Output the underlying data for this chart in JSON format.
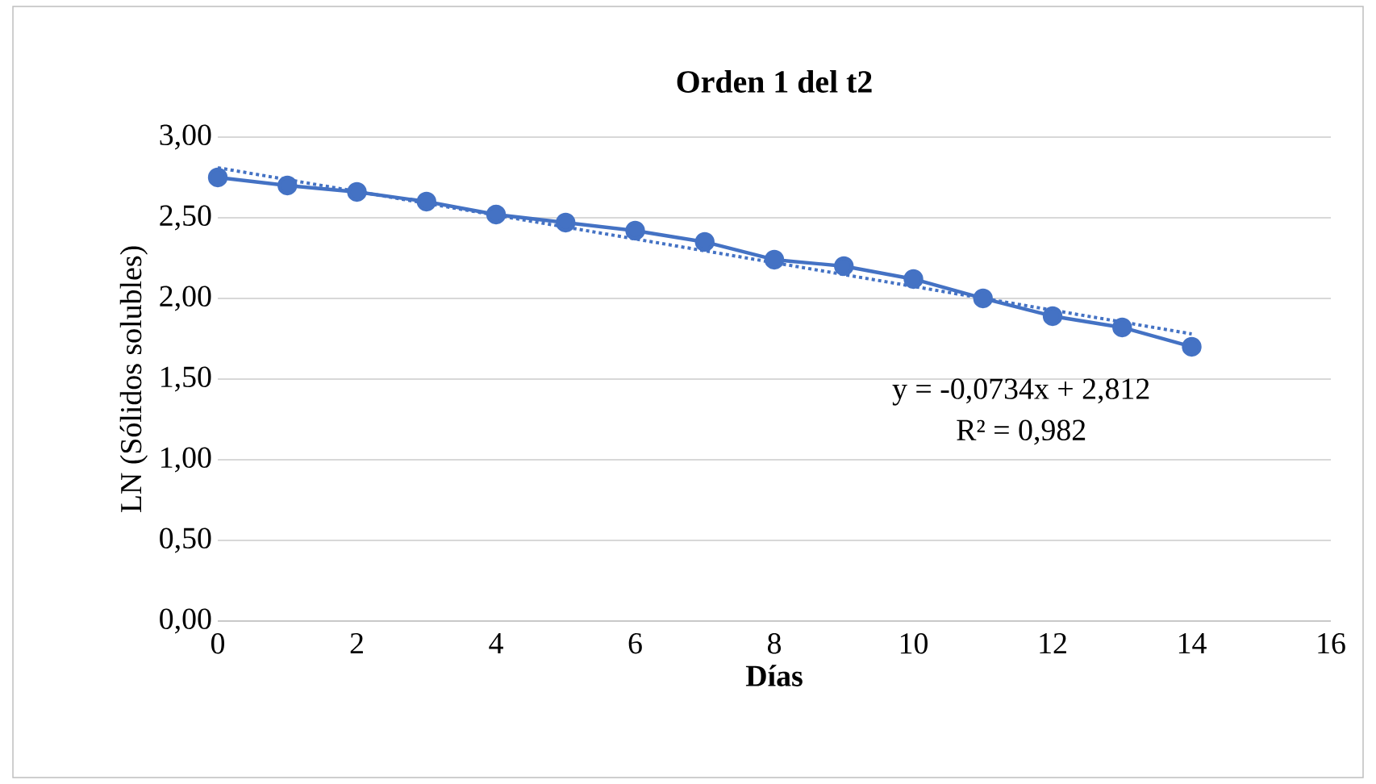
{
  "chart_data": {
    "type": "line",
    "title": "Orden 1 del t2",
    "xlabel": "Días",
    "ylabel": "LN (Sólidos solubles)",
    "x": [
      0,
      1,
      2,
      3,
      4,
      5,
      6,
      7,
      8,
      9,
      10,
      11,
      12,
      13,
      14
    ],
    "series": [
      {
        "color": "#4472c4",
        "marker": "circle",
        "line_style": "solid",
        "values": [
          2.75,
          2.7,
          2.66,
          2.6,
          2.52,
          2.47,
          2.42,
          2.35,
          2.24,
          2.2,
          2.12,
          2.0,
          1.89,
          1.82,
          1.7
        ]
      },
      {
        "type": "line",
        "color": "#4472c4",
        "marker": "none",
        "line_style": "dotted",
        "x": [
          0,
          14
        ],
        "values": [
          2.81,
          1.78
        ]
      }
    ],
    "annotations": [
      "y = -0,0734x + 2,812",
      "R² = 0,982"
    ],
    "xlim": [
      0,
      16
    ],
    "xticks": [
      0,
      2,
      4,
      6,
      8,
      10,
      12,
      14,
      16
    ],
    "ylim": [
      0,
      3
    ],
    "yticks": [
      {
        "value": 0,
        "label": "0,00"
      },
      {
        "value": 0.5,
        "label": "0,50"
      },
      {
        "value": 1,
        "label": "1,00"
      },
      {
        "value": 1.5,
        "label": "1,50"
      },
      {
        "value": 2,
        "label": "2,00"
      },
      {
        "value": 2.5,
        "label": "2,50"
      },
      {
        "value": 3,
        "label": "3,00"
      }
    ],
    "grid": "y"
  }
}
